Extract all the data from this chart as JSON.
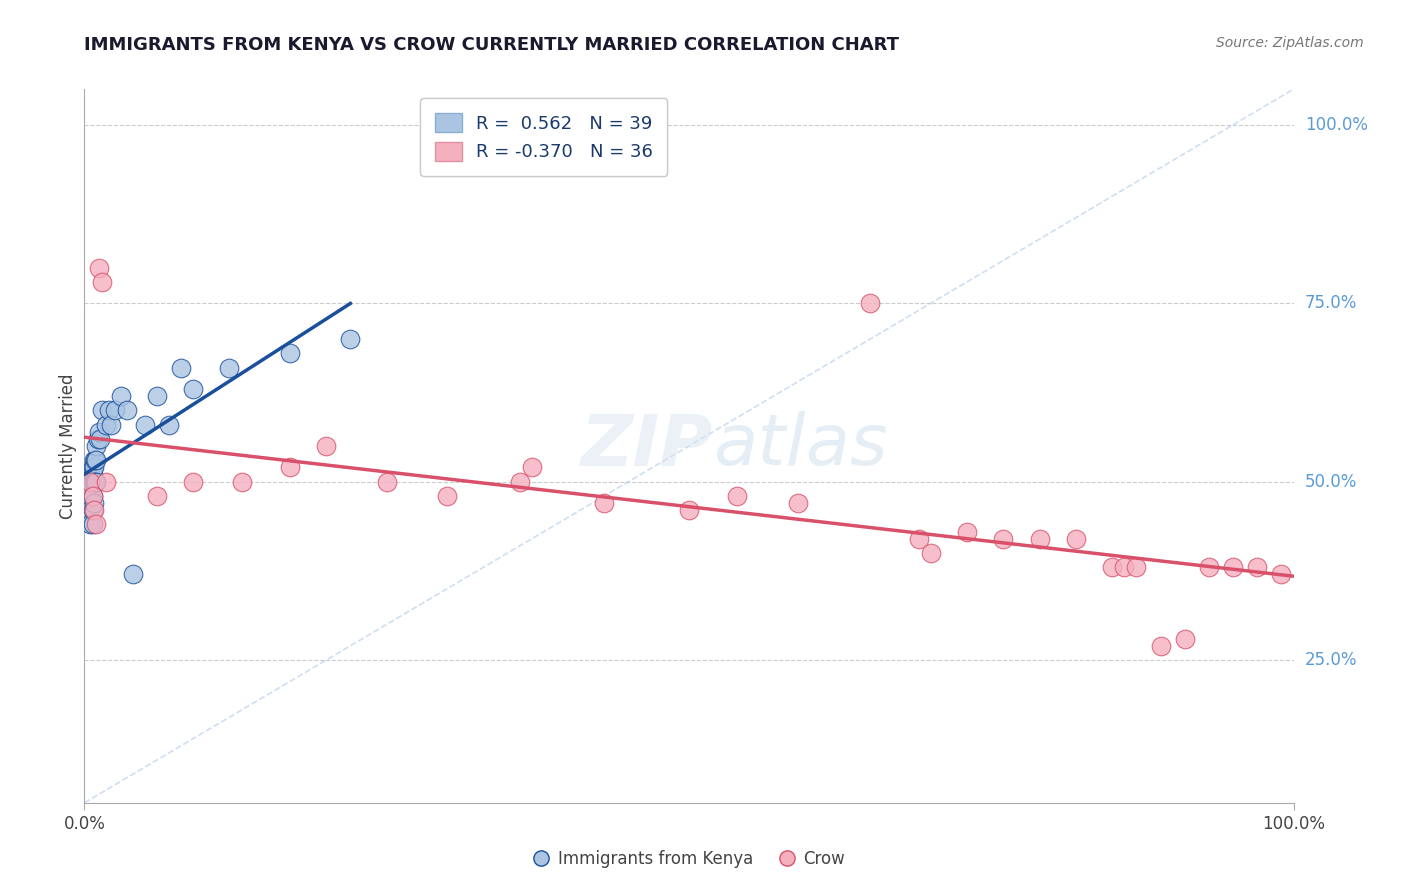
{
  "title": "IMMIGRANTS FROM KENYA VS CROW CURRENTLY MARRIED CORRELATION CHART",
  "source": "Source: ZipAtlas.com",
  "ylabel": "Currently Married",
  "legend_label1": "Immigrants from Kenya",
  "legend_label2": "Crow",
  "r1": 0.562,
  "n1": 39,
  "r2": -0.37,
  "n2": 36,
  "color_blue": "#aac4e2",
  "color_pink": "#f5b0c0",
  "line_blue": "#1a4f9c",
  "line_pink": "#d9506a",
  "line_diagonal": "#b0c8e8",
  "background": "#ffffff",
  "grid_color": "#cccccc",
  "title_color": "#1a1a2e",
  "right_label_color": "#5b9bd5",
  "xlim": [
    0.0,
    1.0
  ],
  "ylim": [
    0.05,
    1.05
  ],
  "yticks": [
    0.25,
    0.5,
    0.75,
    1.0
  ],
  "ytick_labels": [
    "25.0%",
    "50.0%",
    "75.0%",
    "100.0%"
  ],
  "blue_points_x": [
    0.005,
    0.005,
    0.005,
    0.005,
    0.005,
    0.007,
    0.007,
    0.007,
    0.007,
    0.007,
    0.007,
    0.008,
    0.008,
    0.008,
    0.008,
    0.009,
    0.009,
    0.01,
    0.01,
    0.01,
    0.011,
    0.012,
    0.013,
    0.015,
    0.018,
    0.02,
    0.022,
    0.025,
    0.03,
    0.035,
    0.04,
    0.05,
    0.06,
    0.07,
    0.08,
    0.09,
    0.12,
    0.17,
    0.22
  ],
  "blue_points_y": [
    0.5,
    0.49,
    0.48,
    0.46,
    0.44,
    0.52,
    0.51,
    0.5,
    0.48,
    0.46,
    0.44,
    0.53,
    0.52,
    0.5,
    0.47,
    0.53,
    0.5,
    0.55,
    0.53,
    0.5,
    0.56,
    0.57,
    0.56,
    0.6,
    0.58,
    0.6,
    0.58,
    0.6,
    0.62,
    0.6,
    0.37,
    0.58,
    0.62,
    0.58,
    0.66,
    0.63,
    0.66,
    0.68,
    0.7
  ],
  "pink_points_x": [
    0.005,
    0.007,
    0.008,
    0.01,
    0.012,
    0.015,
    0.018,
    0.06,
    0.09,
    0.13,
    0.17,
    0.2,
    0.25,
    0.3,
    0.36,
    0.37,
    0.43,
    0.5,
    0.54,
    0.59,
    0.65,
    0.69,
    0.7,
    0.73,
    0.76,
    0.79,
    0.82,
    0.85,
    0.86,
    0.87,
    0.89,
    0.91,
    0.93,
    0.95,
    0.97,
    0.99
  ],
  "pink_points_y": [
    0.5,
    0.48,
    0.46,
    0.44,
    0.8,
    0.78,
    0.5,
    0.48,
    0.5,
    0.5,
    0.52,
    0.55,
    0.5,
    0.48,
    0.5,
    0.52,
    0.47,
    0.46,
    0.48,
    0.47,
    0.75,
    0.42,
    0.4,
    0.43,
    0.42,
    0.42,
    0.42,
    0.38,
    0.38,
    0.38,
    0.27,
    0.28,
    0.38,
    0.38,
    0.38,
    0.37
  ]
}
